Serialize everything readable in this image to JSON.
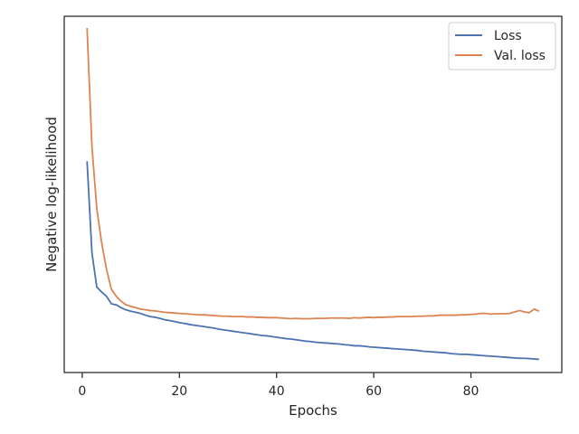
{
  "chart_data": {
    "type": "line",
    "title": "",
    "xlabel": "Epochs",
    "ylabel": "Negative log-likelihood",
    "xlim": [
      -3.7,
      98.7
    ],
    "ylim": [
      0.0,
      1.0
    ],
    "x_ticks": [
      0,
      20,
      40,
      60,
      80
    ],
    "y_ticks_shown": false,
    "grid": false,
    "legend_position": "top-right",
    "series": [
      {
        "name": "Loss",
        "color": "#4C72B0",
        "x": [
          1,
          2,
          3,
          4,
          5,
          6,
          7,
          8,
          9,
          10,
          11,
          12,
          13,
          14,
          15,
          16,
          17,
          18,
          19,
          20,
          21,
          22,
          23,
          24,
          25,
          26,
          27,
          28,
          29,
          30,
          31,
          32,
          33,
          34,
          35,
          36,
          37,
          38,
          39,
          40,
          41,
          42,
          43,
          44,
          45,
          46,
          47,
          48,
          49,
          50,
          51,
          52,
          53,
          54,
          55,
          56,
          57,
          58,
          59,
          60,
          61,
          62,
          63,
          64,
          65,
          66,
          67,
          68,
          69,
          70,
          71,
          72,
          73,
          74,
          75,
          76,
          77,
          78,
          79,
          80,
          81,
          82,
          83,
          84,
          85,
          86,
          87,
          88,
          89,
          90,
          91,
          92,
          93,
          94
        ],
        "values": [
          0.593,
          0.336,
          0.24,
          0.226,
          0.214,
          0.193,
          0.19,
          0.182,
          0.176,
          0.172,
          0.169,
          0.166,
          0.161,
          0.157,
          0.155,
          0.152,
          0.148,
          0.146,
          0.143,
          0.14,
          0.138,
          0.135,
          0.133,
          0.131,
          0.129,
          0.127,
          0.125,
          0.122,
          0.12,
          0.118,
          0.116,
          0.114,
          0.112,
          0.11,
          0.108,
          0.106,
          0.104,
          0.103,
          0.101,
          0.099,
          0.097,
          0.095,
          0.094,
          0.092,
          0.09,
          0.088,
          0.087,
          0.085,
          0.084,
          0.083,
          0.082,
          0.081,
          0.08,
          0.078,
          0.077,
          0.075,
          0.075,
          0.074,
          0.072,
          0.071,
          0.07,
          0.069,
          0.068,
          0.067,
          0.066,
          0.065,
          0.064,
          0.063,
          0.062,
          0.06,
          0.059,
          0.058,
          0.057,
          0.056,
          0.055,
          0.053,
          0.052,
          0.051,
          0.051,
          0.05,
          0.049,
          0.048,
          0.047,
          0.046,
          0.045,
          0.044,
          0.043,
          0.042,
          0.041,
          0.04,
          0.04,
          0.039,
          0.038,
          0.037
        ]
      },
      {
        "name": "Val. loss",
        "color": "#DD8452",
        "x": [
          1,
          2,
          3,
          4,
          5,
          6,
          7,
          8,
          9,
          10,
          11,
          12,
          13,
          14,
          15,
          16,
          17,
          18,
          19,
          20,
          21,
          22,
          23,
          24,
          25,
          26,
          27,
          28,
          29,
          30,
          31,
          32,
          33,
          34,
          35,
          36,
          37,
          38,
          39,
          40,
          41,
          42,
          43,
          44,
          45,
          46,
          47,
          48,
          49,
          50,
          51,
          52,
          53,
          54,
          55,
          56,
          57,
          58,
          59,
          60,
          61,
          62,
          63,
          64,
          65,
          66,
          67,
          68,
          69,
          70,
          71,
          72,
          73,
          74,
          75,
          76,
          77,
          78,
          79,
          80,
          81,
          82,
          83,
          84,
          85,
          86,
          87,
          88,
          89,
          90,
          91,
          92,
          93,
          94
        ],
        "values": [
          0.967,
          0.635,
          0.46,
          0.364,
          0.29,
          0.234,
          0.214,
          0.2,
          0.19,
          0.186,
          0.182,
          0.178,
          0.176,
          0.174,
          0.173,
          0.171,
          0.169,
          0.168,
          0.167,
          0.166,
          0.165,
          0.164,
          0.163,
          0.162,
          0.162,
          0.161,
          0.16,
          0.159,
          0.158,
          0.158,
          0.157,
          0.157,
          0.157,
          0.156,
          0.156,
          0.155,
          0.155,
          0.154,
          0.154,
          0.154,
          0.153,
          0.152,
          0.151,
          0.152,
          0.151,
          0.151,
          0.151,
          0.152,
          0.152,
          0.152,
          0.153,
          0.153,
          0.153,
          0.153,
          0.152,
          0.154,
          0.153,
          0.154,
          0.155,
          0.154,
          0.155,
          0.155,
          0.156,
          0.156,
          0.157,
          0.157,
          0.157,
          0.157,
          0.158,
          0.158,
          0.159,
          0.159,
          0.16,
          0.161,
          0.161,
          0.161,
          0.161,
          0.162,
          0.162,
          0.163,
          0.164,
          0.166,
          0.166,
          0.164,
          0.165,
          0.165,
          0.165,
          0.166,
          0.17,
          0.174,
          0.17,
          0.168,
          0.178,
          0.172
        ]
      }
    ]
  }
}
